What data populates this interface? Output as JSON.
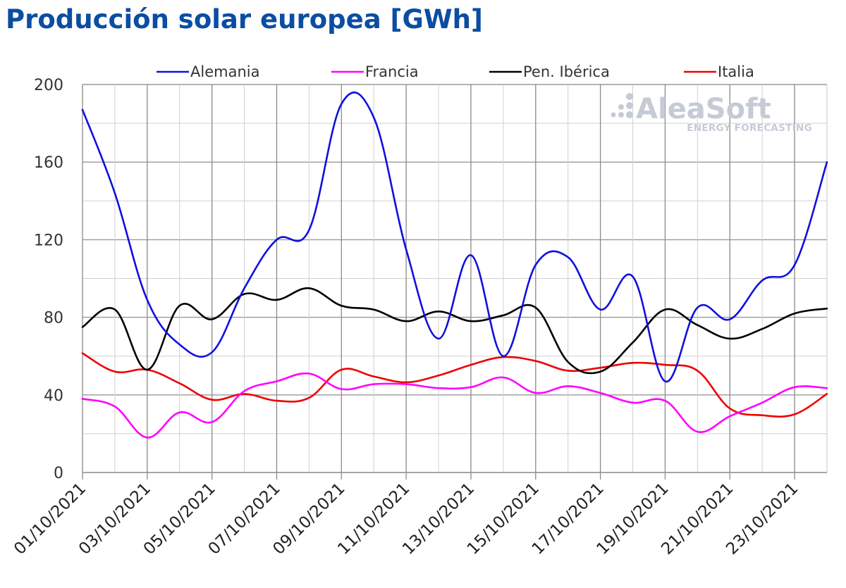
{
  "header": {
    "title": "Producción solar europea [GWh]"
  },
  "watermark": {
    "name": "AleaSoft",
    "subtitle": "ENERGY FORECASTING"
  },
  "chart_data": {
    "type": "line",
    "title": "Producción solar europea [GWh]",
    "xlabel": "",
    "ylabel": "",
    "ylim": [
      0,
      200
    ],
    "yticks": [
      0,
      40,
      80,
      120,
      160,
      200
    ],
    "grid": true,
    "legend_position": "top",
    "x": [
      "01/10/2021",
      "02/10/2021",
      "03/10/2021",
      "04/10/2021",
      "05/10/2021",
      "06/10/2021",
      "07/10/2021",
      "08/10/2021",
      "09/10/2021",
      "10/10/2021",
      "11/10/2021",
      "12/10/2021",
      "13/10/2021",
      "14/10/2021",
      "15/10/2021",
      "16/10/2021",
      "17/10/2021",
      "18/10/2021",
      "19/10/2021",
      "20/10/2021",
      "21/10/2021",
      "22/10/2021",
      "23/10/2021",
      "24/10/2021"
    ],
    "xtick_labels": [
      "01/10/2021",
      "03/10/2021",
      "05/10/2021",
      "07/10/2021",
      "09/10/2021",
      "11/10/2021",
      "13/10/2021",
      "15/10/2021",
      "17/10/2021",
      "19/10/2021",
      "21/10/2021",
      "23/10/2021"
    ],
    "series": [
      {
        "name": "Alemania",
        "color": "#1010e0",
        "values": [
          187,
          144,
          89,
          66,
          62,
          95,
          120,
          125,
          190,
          183,
          115,
          69,
          112,
          60,
          107,
          111,
          84,
          101,
          47,
          85,
          79,
          99,
          107,
          160
        ]
      },
      {
        "name": "Francia",
        "color": "#ff00ff",
        "values": [
          38,
          34,
          18,
          31,
          26,
          42,
          47,
          51,
          43,
          45.5,
          45.5,
          43.5,
          44,
          49,
          41,
          44.5,
          41,
          36,
          37,
          21,
          29,
          36,
          44,
          43.5
        ]
      },
      {
        "name": "Pen. Ibérica",
        "color": "#000000",
        "values": [
          75,
          84,
          53,
          86,
          79,
          92,
          89,
          95,
          86,
          84,
          78,
          83,
          78,
          81,
          85,
          57,
          52,
          67,
          84,
          76,
          69,
          74,
          82,
          84.5
        ]
      },
      {
        "name": "Italia",
        "color": "#ee0000",
        "values": [
          61.5,
          52,
          53,
          46,
          37.5,
          40.5,
          37,
          38.5,
          53,
          49.5,
          46.5,
          50,
          55.5,
          59.5,
          57.5,
          52.5,
          54,
          56.5,
          55.5,
          52.5,
          33,
          29.5,
          30,
          40.5
        ]
      }
    ]
  }
}
